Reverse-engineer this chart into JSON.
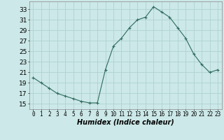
{
  "x": [
    0,
    1,
    2,
    3,
    4,
    5,
    6,
    7,
    8,
    9,
    10,
    11,
    12,
    13,
    14,
    15,
    16,
    17,
    18,
    19,
    20,
    21,
    22,
    23
  ],
  "y": [
    20,
    19,
    18,
    17,
    16.5,
    16,
    15.5,
    15.2,
    15.2,
    21.5,
    26,
    27.5,
    29.5,
    31,
    31.5,
    33.5,
    32.5,
    31.5,
    29.5,
    27.5,
    24.5,
    22.5,
    21,
    21.5
  ],
  "line_color": "#2e6b5e",
  "marker": "+",
  "marker_size": 3,
  "marker_edge_width": 0.8,
  "line_width": 0.8,
  "background_color": "#cce8e8",
  "grid_color": "#aacece",
  "xlabel": "Humidex (Indice chaleur)",
  "xlabel_fontsize": 7,
  "xlabel_style": "italic",
  "ylabel_ticks": [
    15,
    17,
    19,
    21,
    23,
    25,
    27,
    29,
    31,
    33
  ],
  "xlim": [
    -0.5,
    23.5
  ],
  "ylim": [
    14,
    34.5
  ],
  "xtick_labels": [
    "0",
    "1",
    "2",
    "3",
    "4",
    "5",
    "6",
    "7",
    "8",
    "9",
    "10",
    "11",
    "12",
    "13",
    "14",
    "15",
    "16",
    "17",
    "18",
    "19",
    "20",
    "21",
    "22",
    "23"
  ],
  "tick_fontsize": 5.5,
  "ytick_fontsize": 6.5
}
